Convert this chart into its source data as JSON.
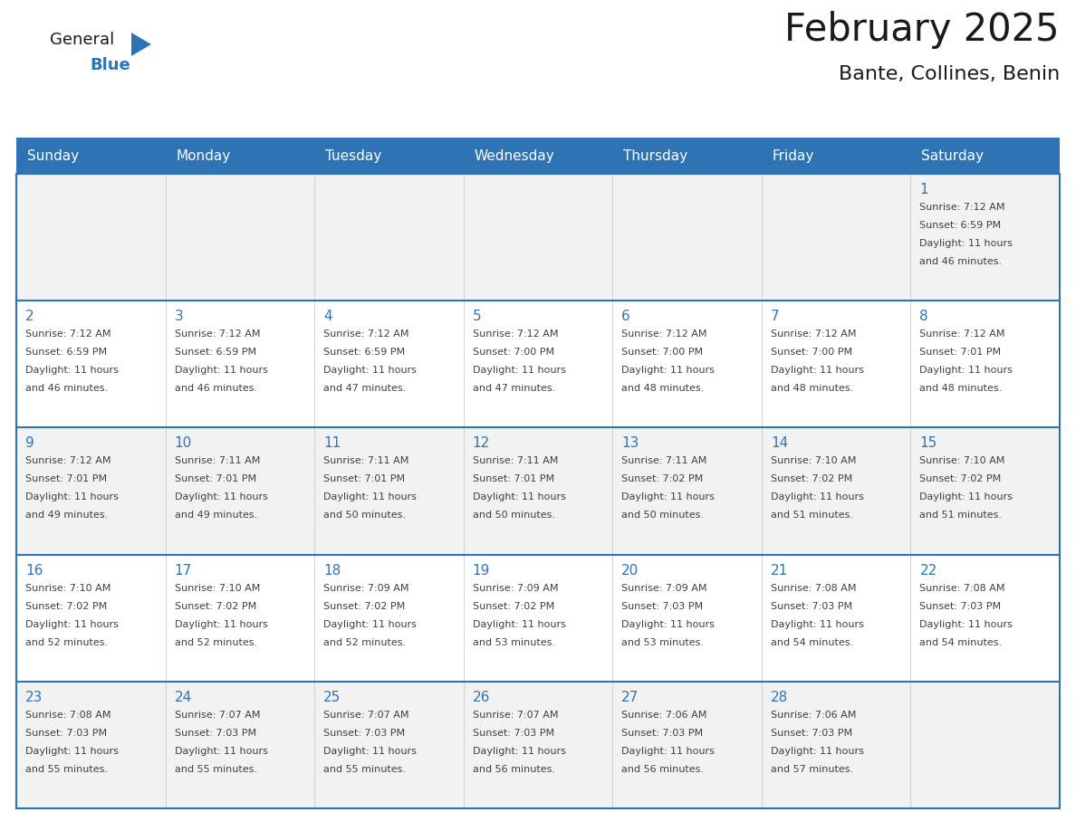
{
  "title": "February 2025",
  "subtitle": "Bante, Collines, Benin",
  "header_bg": "#2E74B5",
  "header_text_color": "#FFFFFF",
  "row_bg_odd": "#F2F2F2",
  "row_bg_even": "#FFFFFF",
  "grid_line_color": "#2E74B5",
  "day_number_color": "#2E74B5",
  "cell_text_color": "#404040",
  "days_of_week": [
    "Sunday",
    "Monday",
    "Tuesday",
    "Wednesday",
    "Thursday",
    "Friday",
    "Saturday"
  ],
  "calendar_data": [
    [
      null,
      null,
      null,
      null,
      null,
      null,
      {
        "day": 1,
        "sunrise": "7:12 AM",
        "sunset": "6:59 PM",
        "daylight": "11 hours and 46 minutes."
      }
    ],
    [
      {
        "day": 2,
        "sunrise": "7:12 AM",
        "sunset": "6:59 PM",
        "daylight": "11 hours and 46 minutes."
      },
      {
        "day": 3,
        "sunrise": "7:12 AM",
        "sunset": "6:59 PM",
        "daylight": "11 hours and 46 minutes."
      },
      {
        "day": 4,
        "sunrise": "7:12 AM",
        "sunset": "6:59 PM",
        "daylight": "11 hours and 47 minutes."
      },
      {
        "day": 5,
        "sunrise": "7:12 AM",
        "sunset": "7:00 PM",
        "daylight": "11 hours and 47 minutes."
      },
      {
        "day": 6,
        "sunrise": "7:12 AM",
        "sunset": "7:00 PM",
        "daylight": "11 hours and 48 minutes."
      },
      {
        "day": 7,
        "sunrise": "7:12 AM",
        "sunset": "7:00 PM",
        "daylight": "11 hours and 48 minutes."
      },
      {
        "day": 8,
        "sunrise": "7:12 AM",
        "sunset": "7:01 PM",
        "daylight": "11 hours and 48 minutes."
      }
    ],
    [
      {
        "day": 9,
        "sunrise": "7:12 AM",
        "sunset": "7:01 PM",
        "daylight": "11 hours and 49 minutes."
      },
      {
        "day": 10,
        "sunrise": "7:11 AM",
        "sunset": "7:01 PM",
        "daylight": "11 hours and 49 minutes."
      },
      {
        "day": 11,
        "sunrise": "7:11 AM",
        "sunset": "7:01 PM",
        "daylight": "11 hours and 50 minutes."
      },
      {
        "day": 12,
        "sunrise": "7:11 AM",
        "sunset": "7:01 PM",
        "daylight": "11 hours and 50 minutes."
      },
      {
        "day": 13,
        "sunrise": "7:11 AM",
        "sunset": "7:02 PM",
        "daylight": "11 hours and 50 minutes."
      },
      {
        "day": 14,
        "sunrise": "7:10 AM",
        "sunset": "7:02 PM",
        "daylight": "11 hours and 51 minutes."
      },
      {
        "day": 15,
        "sunrise": "7:10 AM",
        "sunset": "7:02 PM",
        "daylight": "11 hours and 51 minutes."
      }
    ],
    [
      {
        "day": 16,
        "sunrise": "7:10 AM",
        "sunset": "7:02 PM",
        "daylight": "11 hours and 52 minutes."
      },
      {
        "day": 17,
        "sunrise": "7:10 AM",
        "sunset": "7:02 PM",
        "daylight": "11 hours and 52 minutes."
      },
      {
        "day": 18,
        "sunrise": "7:09 AM",
        "sunset": "7:02 PM",
        "daylight": "11 hours and 52 minutes."
      },
      {
        "day": 19,
        "sunrise": "7:09 AM",
        "sunset": "7:02 PM",
        "daylight": "11 hours and 53 minutes."
      },
      {
        "day": 20,
        "sunrise": "7:09 AM",
        "sunset": "7:03 PM",
        "daylight": "11 hours and 53 minutes."
      },
      {
        "day": 21,
        "sunrise": "7:08 AM",
        "sunset": "7:03 PM",
        "daylight": "11 hours and 54 minutes."
      },
      {
        "day": 22,
        "sunrise": "7:08 AM",
        "sunset": "7:03 PM",
        "daylight": "11 hours and 54 minutes."
      }
    ],
    [
      {
        "day": 23,
        "sunrise": "7:08 AM",
        "sunset": "7:03 PM",
        "daylight": "11 hours and 55 minutes."
      },
      {
        "day": 24,
        "sunrise": "7:07 AM",
        "sunset": "7:03 PM",
        "daylight": "11 hours and 55 minutes."
      },
      {
        "day": 25,
        "sunrise": "7:07 AM",
        "sunset": "7:03 PM",
        "daylight": "11 hours and 55 minutes."
      },
      {
        "day": 26,
        "sunrise": "7:07 AM",
        "sunset": "7:03 PM",
        "daylight": "11 hours and 56 minutes."
      },
      {
        "day": 27,
        "sunrise": "7:06 AM",
        "sunset": "7:03 PM",
        "daylight": "11 hours and 56 minutes."
      },
      {
        "day": 28,
        "sunrise": "7:06 AM",
        "sunset": "7:03 PM",
        "daylight": "11 hours and 57 minutes."
      },
      null
    ]
  ]
}
